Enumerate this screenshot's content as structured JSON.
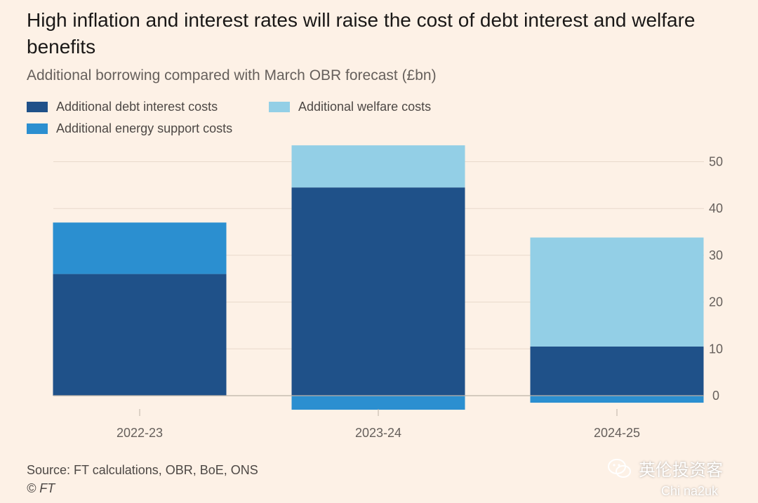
{
  "colors": {
    "background": "#fdf1e6",
    "debt": "#1f5189",
    "welfare": "#93cfe6",
    "energy": "#2b8fd0",
    "grid": "#e8d9cb",
    "zero": "#bdb2a7"
  },
  "legend": [
    {
      "label": "Additional debt interest costs",
      "color": "#1f5189"
    },
    {
      "label": "Additional welfare costs",
      "color": "#93cfe6"
    },
    {
      "label": "Additional energy support costs",
      "color": "#2b8fd0"
    }
  ],
  "footer": {
    "source": "Source: FT calculations, OBR, BoE, ONS",
    "copyright": "© FT"
  },
  "watermark": {
    "name": "英伦投资客",
    "sub": "Chi na2uk",
    "icon": "wechat-icon"
  },
  "chart_data": {
    "type": "bar",
    "stacked": true,
    "title": "High inflation and interest rates will raise the cost of debt interest and welfare benefits",
    "subtitle": "Additional borrowing compared with March OBR forecast (£bn)",
    "categories": [
      "2022-23",
      "2023-24",
      "2024-25"
    ],
    "series": [
      {
        "name": "Additional debt interest costs",
        "values": [
          26,
          44.5,
          10.5
        ]
      },
      {
        "name": "Additional energy support costs",
        "values": [
          11,
          -3,
          -1.5
        ]
      },
      {
        "name": "Additional welfare costs",
        "values": [
          0,
          9,
          23.3
        ]
      }
    ],
    "yticks": [
      0,
      10,
      20,
      30,
      40,
      50
    ],
    "ylim": [
      -3,
      53
    ],
    "y_axis_position": "right",
    "grid": true,
    "legend_position": "top-left"
  }
}
